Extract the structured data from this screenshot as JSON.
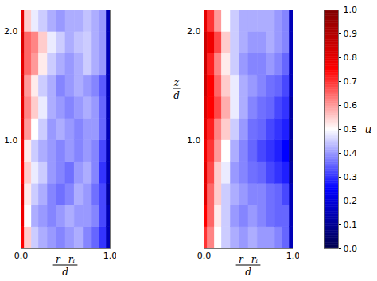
{
  "chart_data": [
    {
      "type": "heatmap",
      "x_edges": [
        0,
        0.04,
        0.12,
        0.2,
        0.3,
        0.4,
        0.5,
        0.6,
        0.7,
        0.8,
        0.88,
        0.96,
        1.0
      ],
      "z_edges": [
        0,
        0.2,
        0.4,
        0.6,
        0.8,
        1.0,
        1.2,
        1.4,
        1.6,
        1.8,
        2.0,
        2.2
      ],
      "cells": [
        [
          0.75,
          0.55,
          0.45,
          0.42,
          0.4,
          0.38,
          0.4,
          0.42,
          0.38,
          0.35,
          0.3,
          0.15
        ],
        [
          0.78,
          0.5,
          0.42,
          0.4,
          0.38,
          0.4,
          0.42,
          0.4,
          0.4,
          0.38,
          0.32,
          0.15
        ],
        [
          0.8,
          0.52,
          0.45,
          0.42,
          0.38,
          0.36,
          0.38,
          0.42,
          0.4,
          0.36,
          0.32,
          0.12
        ],
        [
          0.75,
          0.55,
          0.48,
          0.45,
          0.4,
          0.38,
          0.36,
          0.4,
          0.42,
          0.38,
          0.3,
          0.15
        ],
        [
          0.78,
          0.52,
          0.45,
          0.42,
          0.4,
          0.38,
          0.4,
          0.38,
          0.4,
          0.38,
          0.32,
          0.15
        ],
        [
          0.8,
          0.6,
          0.5,
          0.45,
          0.4,
          0.42,
          0.4,
          0.38,
          0.4,
          0.4,
          0.35,
          0.15
        ],
        [
          0.8,
          0.62,
          0.55,
          0.48,
          0.42,
          0.4,
          0.38,
          0.4,
          0.42,
          0.4,
          0.35,
          0.15
        ],
        [
          0.82,
          0.6,
          0.52,
          0.45,
          0.42,
          0.38,
          0.4,
          0.42,
          0.4,
          0.38,
          0.34,
          0.15
        ],
        [
          0.8,
          0.65,
          0.6,
          0.52,
          0.45,
          0.42,
          0.4,
          0.42,
          0.45,
          0.42,
          0.4,
          0.15
        ],
        [
          0.82,
          0.65,
          0.62,
          0.55,
          0.48,
          0.45,
          0.42,
          0.44,
          0.45,
          0.42,
          0.4,
          0.15
        ],
        [
          0.8,
          0.55,
          0.48,
          0.45,
          0.42,
          0.4,
          0.42,
          0.42,
          0.44,
          0.42,
          0.4,
          0.15
        ]
      ],
      "xlim": [
        0,
        1
      ],
      "ylim": [
        0,
        2.2
      ],
      "xticks": [
        {
          "value": 0,
          "label": "0.0"
        },
        {
          "value": 1,
          "label": "1.0"
        }
      ],
      "yticks": [
        {
          "value": 1,
          "label": "1.0"
        },
        {
          "value": 2,
          "label": "2.0"
        }
      ],
      "xlabel": {
        "numerator": "r−rᵢ",
        "denominator": "d"
      }
    },
    {
      "type": "heatmap",
      "x_edges": [
        0,
        0.04,
        0.12,
        0.2,
        0.3,
        0.4,
        0.5,
        0.6,
        0.7,
        0.8,
        0.88,
        0.96,
        1.0
      ],
      "z_edges": [
        0,
        0.2,
        0.4,
        0.6,
        0.8,
        1.0,
        1.2,
        1.4,
        1.6,
        1.8,
        2.0,
        2.2
      ],
      "cells": [
        [
          0.7,
          0.62,
          0.5,
          0.45,
          0.42,
          0.4,
          0.42,
          0.4,
          0.4,
          0.38,
          0.35,
          0.15
        ],
        [
          0.75,
          0.65,
          0.52,
          0.45,
          0.4,
          0.38,
          0.4,
          0.38,
          0.36,
          0.35,
          0.35,
          0.15
        ],
        [
          0.8,
          0.65,
          0.55,
          0.45,
          0.42,
          0.4,
          0.38,
          0.38,
          0.36,
          0.35,
          0.32,
          0.15
        ],
        [
          0.8,
          0.68,
          0.55,
          0.48,
          0.4,
          0.38,
          0.36,
          0.35,
          0.32,
          0.3,
          0.28,
          0.12
        ],
        [
          0.78,
          0.7,
          0.6,
          0.5,
          0.42,
          0.38,
          0.35,
          0.32,
          0.3,
          0.28,
          0.25,
          0.1
        ],
        [
          0.8,
          0.72,
          0.62,
          0.55,
          0.45,
          0.4,
          0.36,
          0.35,
          0.32,
          0.3,
          0.28,
          0.12
        ],
        [
          0.82,
          0.75,
          0.68,
          0.58,
          0.48,
          0.42,
          0.38,
          0.36,
          0.35,
          0.32,
          0.3,
          0.12
        ],
        [
          0.85,
          0.75,
          0.65,
          0.55,
          0.48,
          0.42,
          0.4,
          0.38,
          0.36,
          0.35,
          0.32,
          0.15
        ],
        [
          0.85,
          0.72,
          0.62,
          0.52,
          0.45,
          0.4,
          0.38,
          0.38,
          0.4,
          0.38,
          0.35,
          0.15
        ],
        [
          0.85,
          0.78,
          0.68,
          0.55,
          0.45,
          0.42,
          0.4,
          0.4,
          0.42,
          0.4,
          0.38,
          0.15
        ],
        [
          0.8,
          0.7,
          0.6,
          0.5,
          0.45,
          0.42,
          0.42,
          0.42,
          0.42,
          0.4,
          0.38,
          0.15
        ]
      ],
      "xlim": [
        0,
        1
      ],
      "ylim": [
        0,
        2.2
      ],
      "xticks": [
        {
          "value": 0,
          "label": "0.0"
        },
        {
          "value": 1,
          "label": "1.0"
        }
      ],
      "yticks": [
        {
          "value": 1,
          "label": "1.0"
        },
        {
          "value": 2,
          "label": "2.0"
        }
      ],
      "xlabel": {
        "numerator": "r−rᵢ",
        "denominator": "d"
      },
      "ylabel": {
        "numerator": "z",
        "denominator": "d"
      }
    }
  ],
  "colorbar": {
    "range": [
      0,
      1
    ],
    "ticks": [
      {
        "value": 0,
        "label": "0.0"
      },
      {
        "value": 0.1,
        "label": "0.1"
      },
      {
        "value": 0.2,
        "label": "0.2"
      },
      {
        "value": 0.3,
        "label": "0.3"
      },
      {
        "value": 0.4,
        "label": "0.4"
      },
      {
        "value": 0.5,
        "label": "0.5"
      },
      {
        "value": 0.6,
        "label": "0.6"
      },
      {
        "value": 0.7,
        "label": "0.7"
      },
      {
        "value": 0.8,
        "label": "0.8"
      },
      {
        "value": 0.9,
        "label": "0.9"
      },
      {
        "value": 1,
        "label": "1.0"
      }
    ],
    "label": "u"
  }
}
